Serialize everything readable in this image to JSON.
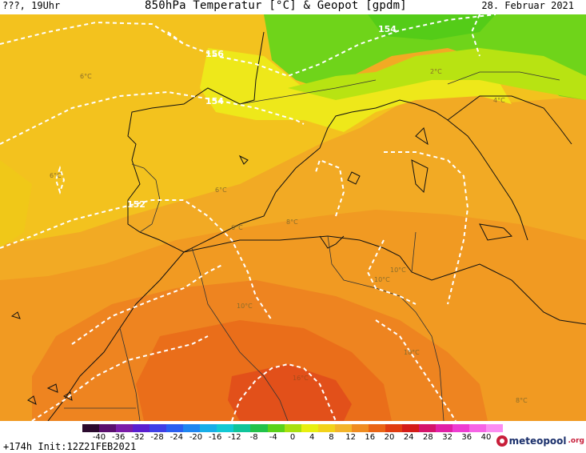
{
  "header": {
    "left": "???, 19Uhr",
    "title": "850hPa Temperatur [°C] & Geopot [gpdm]",
    "date": "28. Februar 2021"
  },
  "map": {
    "geopot_labels": [
      "154",
      "156",
      "154",
      "152"
    ],
    "temp_labels": [
      "6°C",
      "2°C",
      "4°C",
      "6°C",
      "6°C",
      "6°C",
      "8°C",
      "10°C",
      "10°C",
      "10°C",
      "10°C",
      "16°C",
      "8°C"
    ]
  },
  "footer": {
    "run_info": "+174h  Init:12Z21FEB2021",
    "legend_ticks": [
      "-40",
      "-36",
      "-32",
      "-28",
      "-24",
      "-20",
      "-16",
      "-12",
      "-8",
      "-4",
      "0",
      "4",
      "8",
      "12",
      "16",
      "20",
      "24",
      "28",
      "32",
      "36",
      "40"
    ],
    "legend_colors": [
      "#2b0a2e",
      "#5a0f6e",
      "#7a1ca8",
      "#5a1fd0",
      "#3f3fe6",
      "#2a5ff0",
      "#1f86f0",
      "#18aee8",
      "#12c9d4",
      "#10c49a",
      "#22c24a",
      "#5ad21a",
      "#a8e00e",
      "#e8ef10",
      "#f2d21a",
      "#f3b42a",
      "#f08c20",
      "#ea6414",
      "#e03c10",
      "#d41c18",
      "#d4146a",
      "#e020a6",
      "#ee3cd2",
      "#f664e6",
      "#fb8ef2"
    ],
    "brand": "meteopool",
    "brand_tld": ".org"
  }
}
